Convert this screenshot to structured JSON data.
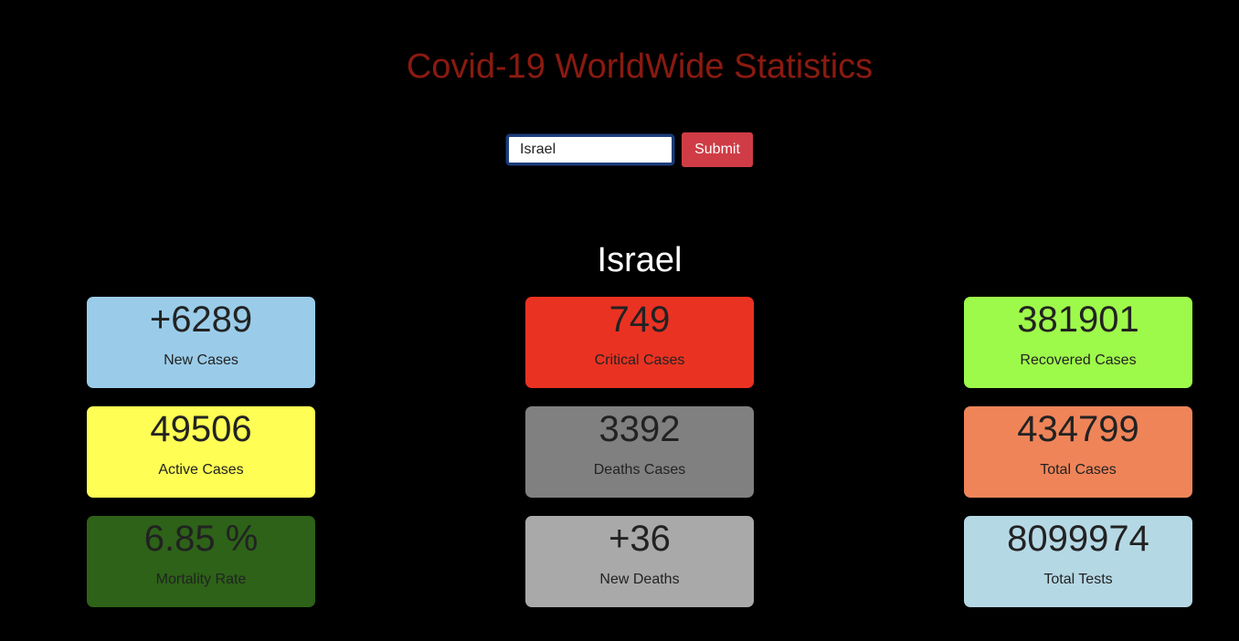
{
  "header": {
    "title": "Covid-19 WorldWide Statistics"
  },
  "search": {
    "value": "Israel",
    "submit_label": "Submit"
  },
  "country": {
    "name": "Israel"
  },
  "cards": [
    {
      "value": "+6289",
      "label": "New Cases",
      "color": "#9acce9"
    },
    {
      "value": "749",
      "label": "Critical Cases",
      "color": "#ea3222"
    },
    {
      "value": "381901",
      "label": "Recovered Cases",
      "color": "#9efa4a"
    },
    {
      "value": "49506",
      "label": "Active Cases",
      "color": "#fefe54"
    },
    {
      "value": "3392",
      "label": "Deaths Cases",
      "color": "#808080"
    },
    {
      "value": "434799",
      "label": "Total Cases",
      "color": "#ef8459"
    },
    {
      "value": "6.85 %",
      "label": "Mortality Rate",
      "color": "#2d6218"
    },
    {
      "value": "+36",
      "label": "New Deaths",
      "color": "#a9a9a9"
    },
    {
      "value": "8099974",
      "label": "Total Tests",
      "color": "#b5d8e5"
    }
  ]
}
